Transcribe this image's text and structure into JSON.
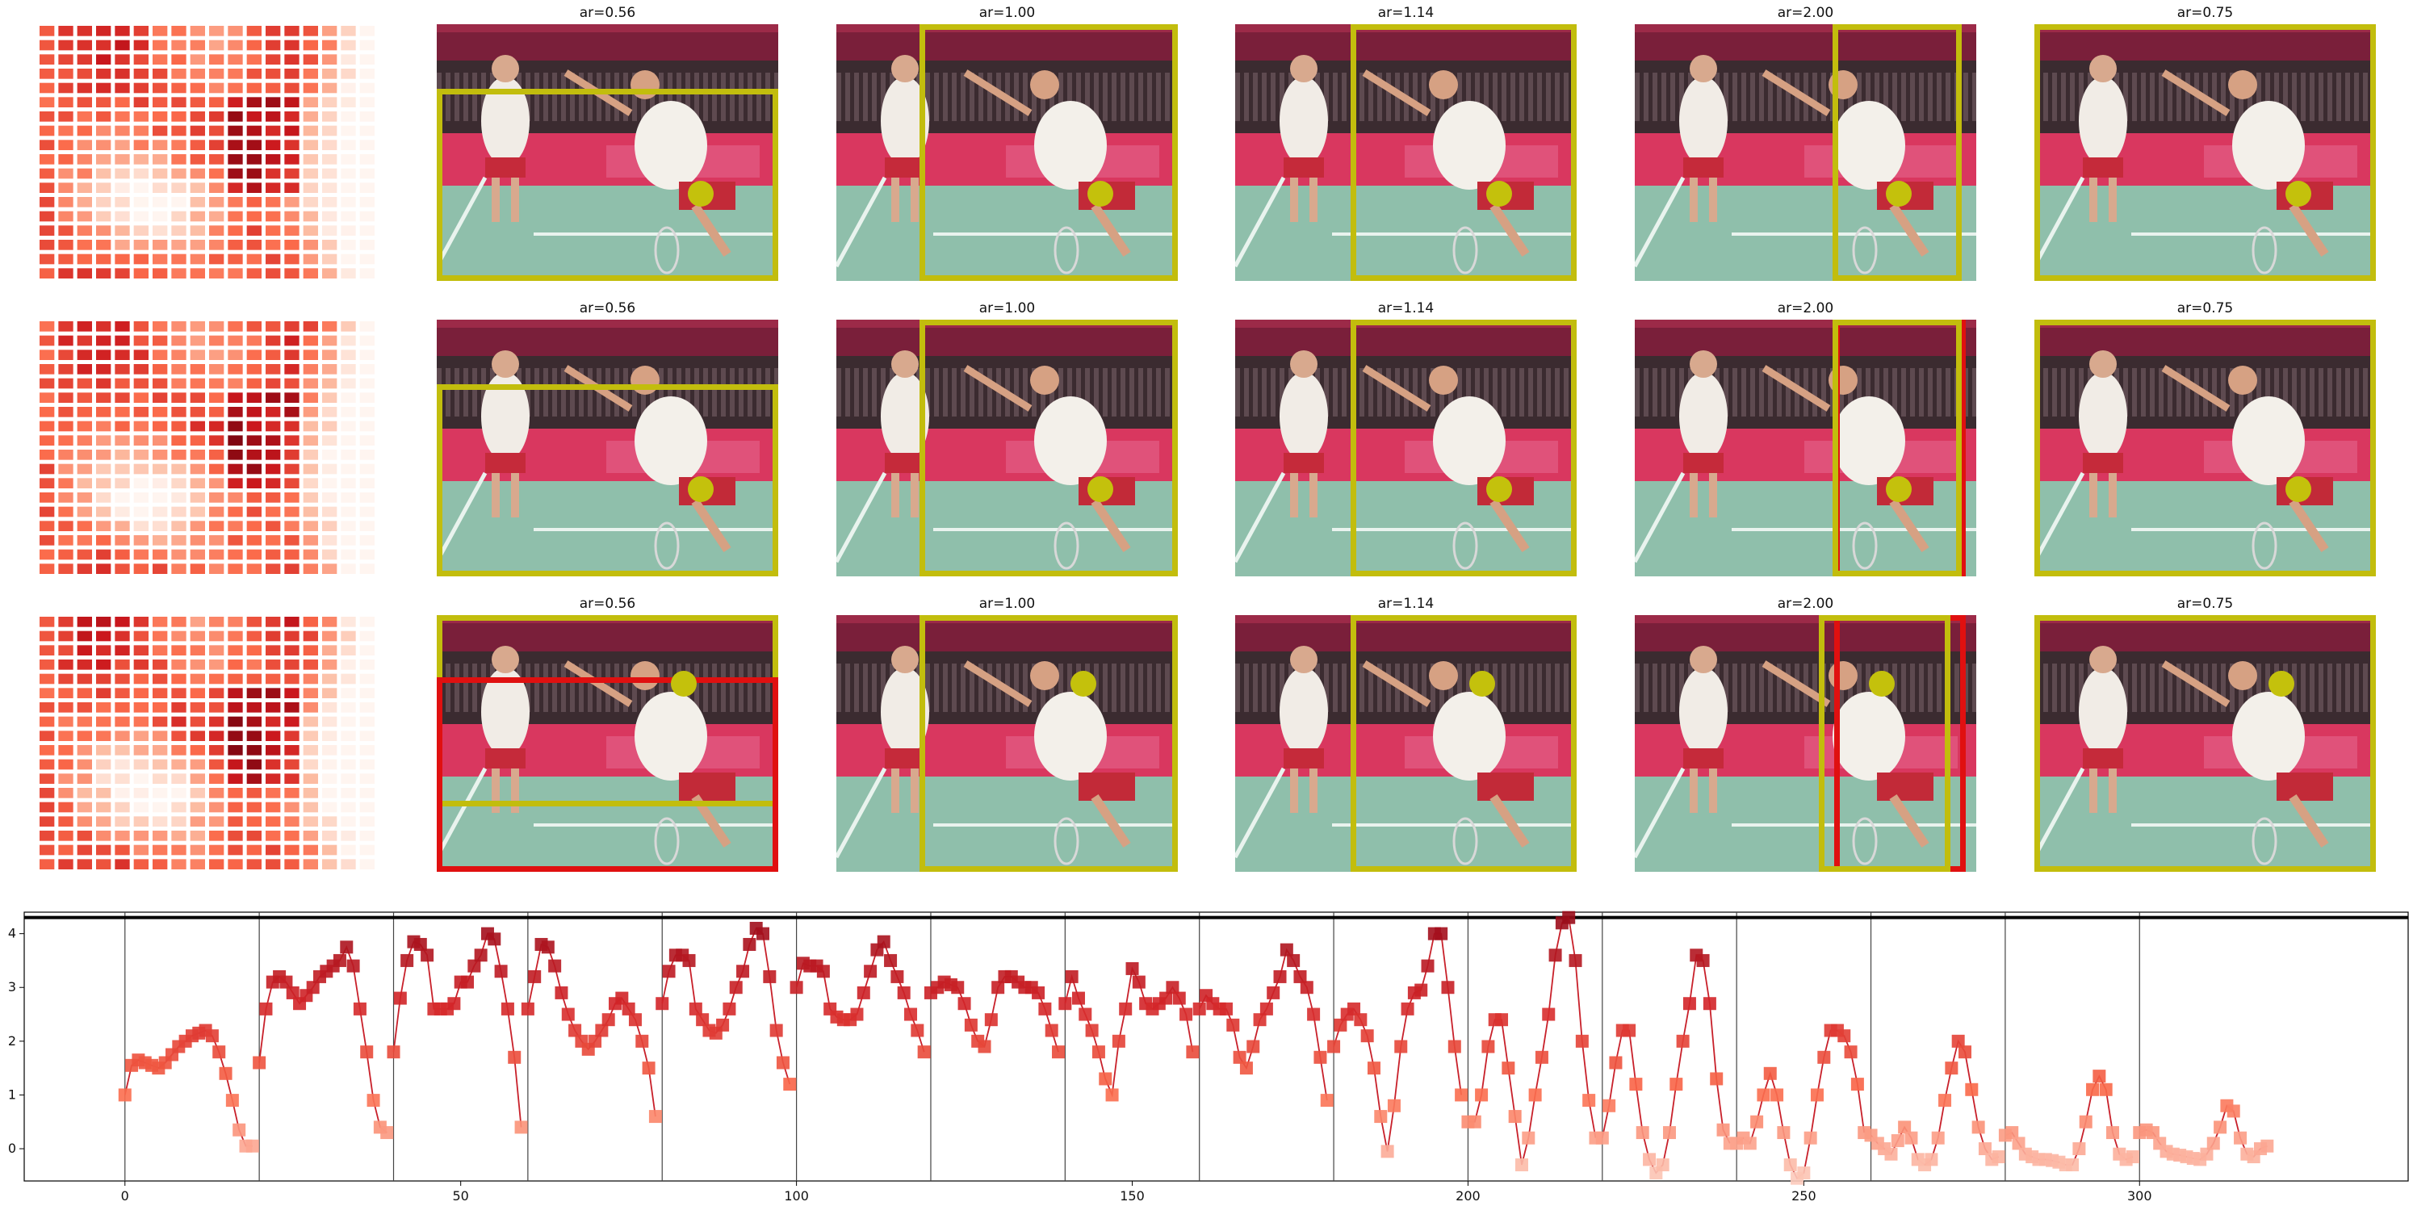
{
  "colors": {
    "box_yellow": "#c2bd0d",
    "box_red": "#e01010",
    "dot_yellow": "#c4c10c",
    "curve_line": "#c8202a"
  },
  "rows": [
    {
      "panels": [
        {
          "title": "ar=0.56",
          "boxes": [
            {
              "color": "yellow"
            }
          ],
          "dot": "yellow"
        },
        {
          "title": "ar=1.00",
          "boxes": [
            {
              "color": "yellow"
            }
          ],
          "dot": "yellow"
        },
        {
          "title": "ar=1.14",
          "boxes": [
            {
              "color": "yellow"
            }
          ],
          "dot": "yellow"
        },
        {
          "title": "ar=2.00",
          "boxes": [
            {
              "color": "yellow"
            }
          ],
          "dot": "yellow"
        },
        {
          "title": "ar=0.75",
          "boxes": [
            {
              "color": "yellow"
            }
          ],
          "dot": "yellow"
        }
      ]
    },
    {
      "panels": [
        {
          "title": "ar=0.56",
          "boxes": [
            {
              "color": "yellow"
            }
          ],
          "dot": "yellow"
        },
        {
          "title": "ar=1.00",
          "boxes": [
            {
              "color": "yellow"
            }
          ],
          "dot": "yellow"
        },
        {
          "title": "ar=1.14",
          "boxes": [
            {
              "color": "yellow"
            }
          ],
          "dot": "yellow"
        },
        {
          "title": "ar=2.00",
          "boxes": [
            {
              "color": "red"
            },
            {
              "color": "yellow"
            }
          ],
          "dot": "yellow"
        },
        {
          "title": "ar=0.75",
          "boxes": [
            {
              "color": "yellow"
            }
          ],
          "dot": "yellow"
        }
      ]
    },
    {
      "panels": [
        {
          "title": "ar=0.56",
          "boxes": [
            {
              "color": "yellow"
            },
            {
              "color": "red"
            }
          ],
          "dot": "yellow"
        },
        {
          "title": "ar=1.00",
          "boxes": [
            {
              "color": "yellow"
            }
          ],
          "dot": "yellow"
        },
        {
          "title": "ar=1.14",
          "boxes": [
            {
              "color": "yellow"
            }
          ],
          "dot": "yellow"
        },
        {
          "title": "ar=2.00",
          "boxes": [
            {
              "color": "red"
            },
            {
              "color": "yellow"
            }
          ],
          "dot": "yellow"
        },
        {
          "title": "ar=0.75",
          "boxes": [
            {
              "color": "yellow"
            }
          ],
          "dot": "yellow"
        }
      ]
    }
  ],
  "chart_data": {
    "type": "line",
    "xlim": [
      -15,
      340
    ],
    "ylim": [
      -0.6,
      4.4
    ],
    "xticks": [
      0,
      50,
      100,
      150,
      200,
      250,
      300
    ],
    "yticks": [
      0,
      1,
      2,
      3,
      4
    ],
    "vlines": [
      0,
      20,
      40,
      60,
      80,
      100,
      120,
      140,
      160,
      180,
      200,
      220,
      240,
      260,
      280,
      300
    ],
    "hline": 4.3,
    "segments": [
      {
        "x": [
          0,
          1,
          2,
          3,
          4,
          5,
          6,
          7,
          8,
          9,
          10,
          11,
          12,
          13,
          14,
          15,
          16,
          17,
          18,
          19
        ],
        "y": [
          1.0,
          1.55,
          1.65,
          1.6,
          1.55,
          1.5,
          1.6,
          1.75,
          1.9,
          2.0,
          2.1,
          2.15,
          2.2,
          2.1,
          1.8,
          1.4,
          0.9,
          0.35,
          0.05,
          0.05
        ]
      },
      {
        "x": [
          20,
          21,
          22,
          23,
          24,
          25,
          26,
          27,
          28,
          29,
          30,
          31,
          32,
          33,
          34,
          35,
          36,
          37,
          38,
          39
        ],
        "y": [
          1.6,
          2.6,
          3.1,
          3.2,
          3.1,
          2.9,
          2.7,
          2.85,
          3.0,
          3.2,
          3.3,
          3.4,
          3.5,
          3.75,
          3.4,
          2.6,
          1.8,
          0.9,
          0.4,
          0.3
        ]
      },
      {
        "x": [
          40,
          41,
          42,
          43,
          44,
          45,
          46,
          47,
          48,
          49,
          50,
          51,
          52,
          53,
          54,
          55,
          56,
          57,
          58,
          59
        ],
        "y": [
          1.8,
          2.8,
          3.5,
          3.85,
          3.8,
          3.6,
          2.6,
          2.6,
          2.6,
          2.7,
          3.1,
          3.1,
          3.4,
          3.6,
          4.0,
          3.9,
          3.3,
          2.6,
          1.7,
          0.4
        ]
      },
      {
        "x": [
          60,
          61,
          62,
          63,
          64,
          65,
          66,
          67,
          68,
          69,
          70,
          71,
          72,
          73,
          74,
          75,
          76,
          77,
          78,
          79
        ],
        "y": [
          2.6,
          3.2,
          3.8,
          3.75,
          3.4,
          2.9,
          2.5,
          2.2,
          2.0,
          1.85,
          2.0,
          2.2,
          2.4,
          2.7,
          2.8,
          2.6,
          2.4,
          2.0,
          1.5,
          0.6
        ]
      },
      {
        "x": [
          80,
          81,
          82,
          83,
          84,
          85,
          86,
          87,
          88,
          89,
          90,
          91,
          92,
          93,
          94,
          95,
          96,
          97,
          98,
          99
        ],
        "y": [
          2.7,
          3.3,
          3.6,
          3.6,
          3.5,
          2.6,
          2.4,
          2.2,
          2.15,
          2.3,
          2.6,
          3.0,
          3.3,
          3.8,
          4.1,
          4.0,
          3.2,
          2.2,
          1.6,
          1.2
        ]
      },
      {
        "x": [
          100,
          101,
          102,
          103,
          104,
          105,
          106,
          107,
          108,
          109,
          110,
          111,
          112,
          113,
          114,
          115,
          116,
          117,
          118,
          119
        ],
        "y": [
          3.0,
          3.45,
          3.4,
          3.4,
          3.3,
          2.6,
          2.45,
          2.4,
          2.4,
          2.5,
          2.9,
          3.3,
          3.7,
          3.85,
          3.5,
          3.2,
          2.9,
          2.5,
          2.2,
          1.8
        ]
      },
      {
        "x": [
          120,
          121,
          122,
          123,
          124,
          125,
          126,
          127,
          128,
          129,
          130,
          131,
          132,
          133,
          134,
          135,
          136,
          137,
          138,
          139
        ],
        "y": [
          2.9,
          3.0,
          3.1,
          3.05,
          3.0,
          2.7,
          2.3,
          2.0,
          1.9,
          2.4,
          3.0,
          3.2,
          3.2,
          3.1,
          3.0,
          3.0,
          2.9,
          2.6,
          2.2,
          1.8
        ]
      },
      {
        "x": [
          140,
          141,
          142,
          143,
          144,
          145,
          146,
          147,
          148,
          149,
          150,
          151,
          152,
          153,
          154,
          155,
          156,
          157,
          158,
          159
        ],
        "y": [
          2.7,
          3.2,
          2.8,
          2.5,
          2.2,
          1.8,
          1.3,
          1.0,
          2.0,
          2.6,
          3.35,
          3.1,
          2.7,
          2.6,
          2.7,
          2.8,
          3.0,
          2.8,
          2.5,
          1.8
        ]
      },
      {
        "x": [
          160,
          161,
          162,
          163,
          164,
          165,
          166,
          167,
          168,
          169,
          170,
          171,
          172,
          173,
          174,
          175,
          176,
          177,
          178,
          179
        ],
        "y": [
          2.6,
          2.85,
          2.7,
          2.6,
          2.6,
          2.3,
          1.7,
          1.5,
          1.9,
          2.4,
          2.6,
          2.9,
          3.2,
          3.7,
          3.5,
          3.2,
          3.0,
          2.5,
          1.7,
          0.9
        ]
      },
      {
        "x": [
          180,
          181,
          182,
          183,
          184,
          185,
          186,
          187,
          188,
          189,
          190,
          191,
          192,
          193,
          194,
          195,
          196,
          197,
          198,
          199
        ],
        "y": [
          1.9,
          2.3,
          2.5,
          2.6,
          2.4,
          2.1,
          1.5,
          0.6,
          -0.05,
          0.8,
          1.9,
          2.6,
          2.9,
          2.95,
          3.4,
          4.0,
          4.0,
          3.0,
          1.9,
          1.0
        ]
      },
      {
        "x": [
          200,
          201,
          202,
          203,
          204,
          205,
          206,
          207,
          208,
          209,
          210,
          211,
          212,
          213,
          214,
          215,
          216,
          217,
          218,
          219
        ],
        "y": [
          0.5,
          0.5,
          1.0,
          1.9,
          2.4,
          2.4,
          1.5,
          0.6,
          -0.3,
          0.2,
          1.0,
          1.7,
          2.5,
          3.6,
          4.2,
          4.3,
          3.5,
          2.0,
          0.9,
          0.2
        ]
      },
      {
        "x": [
          220,
          221,
          222,
          223,
          224,
          225,
          226,
          227,
          228,
          229,
          230,
          231,
          232,
          233,
          234,
          235,
          236,
          237,
          238,
          239
        ],
        "y": [
          0.2,
          0.8,
          1.6,
          2.2,
          2.2,
          1.2,
          0.3,
          -0.2,
          -0.45,
          -0.3,
          0.3,
          1.2,
          2.0,
          2.7,
          3.6,
          3.5,
          2.7,
          1.3,
          0.35,
          0.1
        ]
      },
      {
        "x": [
          240,
          241,
          242,
          243,
          244,
          245,
          246,
          247,
          248,
          249,
          250,
          251,
          252,
          253,
          254,
          255,
          256,
          257,
          258,
          259
        ],
        "y": [
          0.1,
          0.2,
          0.1,
          0.5,
          1.0,
          1.4,
          1.0,
          0.3,
          -0.3,
          -0.55,
          -0.45,
          0.2,
          1.0,
          1.7,
          2.2,
          2.2,
          2.1,
          1.8,
          1.2,
          0.3
        ]
      },
      {
        "x": [
          260,
          261,
          262,
          263,
          264,
          265,
          266,
          267,
          268,
          269,
          270,
          271,
          272,
          273,
          274,
          275,
          276,
          277,
          278,
          279
        ],
        "y": [
          0.25,
          0.1,
          0.0,
          -0.1,
          0.15,
          0.4,
          0.2,
          -0.2,
          -0.3,
          -0.2,
          0.2,
          0.9,
          1.5,
          2.0,
          1.8,
          1.1,
          0.4,
          0.0,
          -0.2,
          -0.15
        ]
      },
      {
        "x": [
          280,
          281,
          282,
          283,
          284,
          285,
          286,
          287,
          288,
          289,
          290,
          291,
          292,
          293,
          294,
          295,
          296,
          297,
          298,
          299
        ],
        "y": [
          0.25,
          0.3,
          0.1,
          -0.1,
          -0.15,
          -0.2,
          -0.2,
          -0.22,
          -0.25,
          -0.3,
          -0.3,
          0.0,
          0.5,
          1.1,
          1.35,
          1.1,
          0.3,
          -0.1,
          -0.2,
          -0.15
        ]
      },
      {
        "x": [
          300,
          301,
          302,
          303,
          304,
          305,
          306,
          307,
          308,
          309,
          310,
          311,
          312,
          313,
          314,
          315,
          316,
          317,
          318,
          319
        ],
        "y": [
          0.3,
          0.35,
          0.3,
          0.1,
          -0.05,
          -0.1,
          -0.12,
          -0.15,
          -0.18,
          -0.2,
          -0.1,
          0.1,
          0.4,
          0.8,
          0.7,
          0.2,
          -0.1,
          -0.15,
          0.0,
          0.05
        ]
      }
    ]
  }
}
